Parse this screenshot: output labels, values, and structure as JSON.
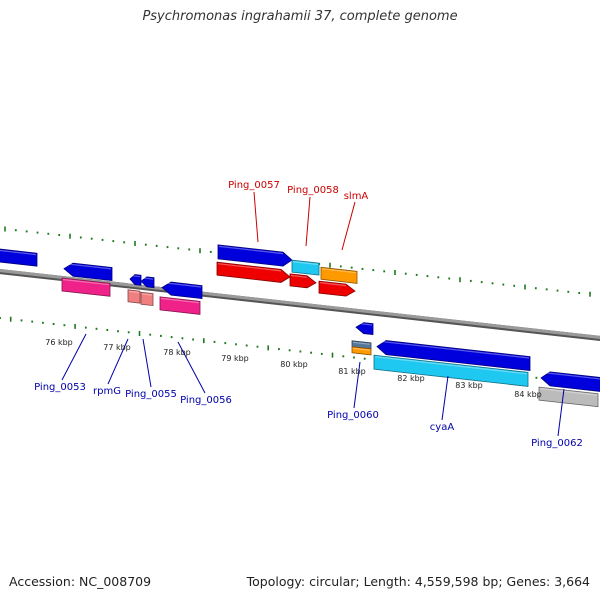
{
  "title": "Psychromonas ingrahamii 37, complete genome",
  "footer": {
    "accession": "Accession: NC_008709",
    "summary": "Topology: circular; Length: 4,559,598 bp; Genes: 3,664"
  },
  "colors": {
    "backbone": "#8c8c8c",
    "tick": "#1f7a1f",
    "blue": "#0000dd",
    "light_blue": "#1ec8f0",
    "orange": "#ff9900",
    "red": "#ee0000",
    "magenta": "#ee2288",
    "salmon": "#f08080",
    "gray": "#bbbbbb",
    "label_red": "#cc0000",
    "label_blue": "#0000aa"
  },
  "scale_labels": [
    "76 kbp",
    "77 kbp",
    "78 kbp",
    "79 kbp",
    "80 kbp",
    "81 kbp",
    "82 kbp",
    "83 kbp",
    "84 kbp"
  ],
  "gene_labels_top": [
    "Ping_0057",
    "Ping_0058",
    "slmA"
  ],
  "gene_labels_bottom": [
    "Ping_0053",
    "rpmG",
    "Ping_0055",
    "Ping_0056",
    "Ping_0060",
    "cyaA",
    "Ping_0062"
  ]
}
